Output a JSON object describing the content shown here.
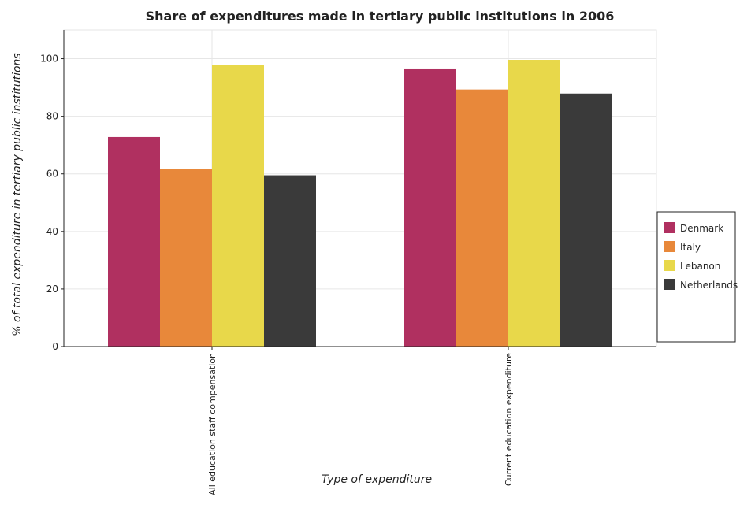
{
  "chart_data": {
    "type": "bar",
    "title": "Share of expenditures made in tertiary public institutions in 2006",
    "xlabel": "Type of expenditure",
    "ylabel": "% of total expenditure in tertiary public institutions",
    "categories": [
      "All education staff compensation",
      "Current education expenditure"
    ],
    "series": [
      {
        "name": "Denmark",
        "color": "#b03060",
        "values": [
          72.8,
          96.6
        ]
      },
      {
        "name": "Italy",
        "color": "#e8883a",
        "values": [
          61.6,
          89.3
        ]
      },
      {
        "name": "Lebanon",
        "color": "#e8d84a",
        "values": [
          97.9,
          99.6
        ]
      },
      {
        "name": "Netherlands",
        "color": "#3a3a3a",
        "values": [
          59.5,
          87.9
        ]
      }
    ],
    "ylim": [
      0,
      110
    ],
    "yticks": [
      0,
      20,
      40,
      60,
      80,
      100
    ],
    "grid": true,
    "legend_position": "right"
  }
}
